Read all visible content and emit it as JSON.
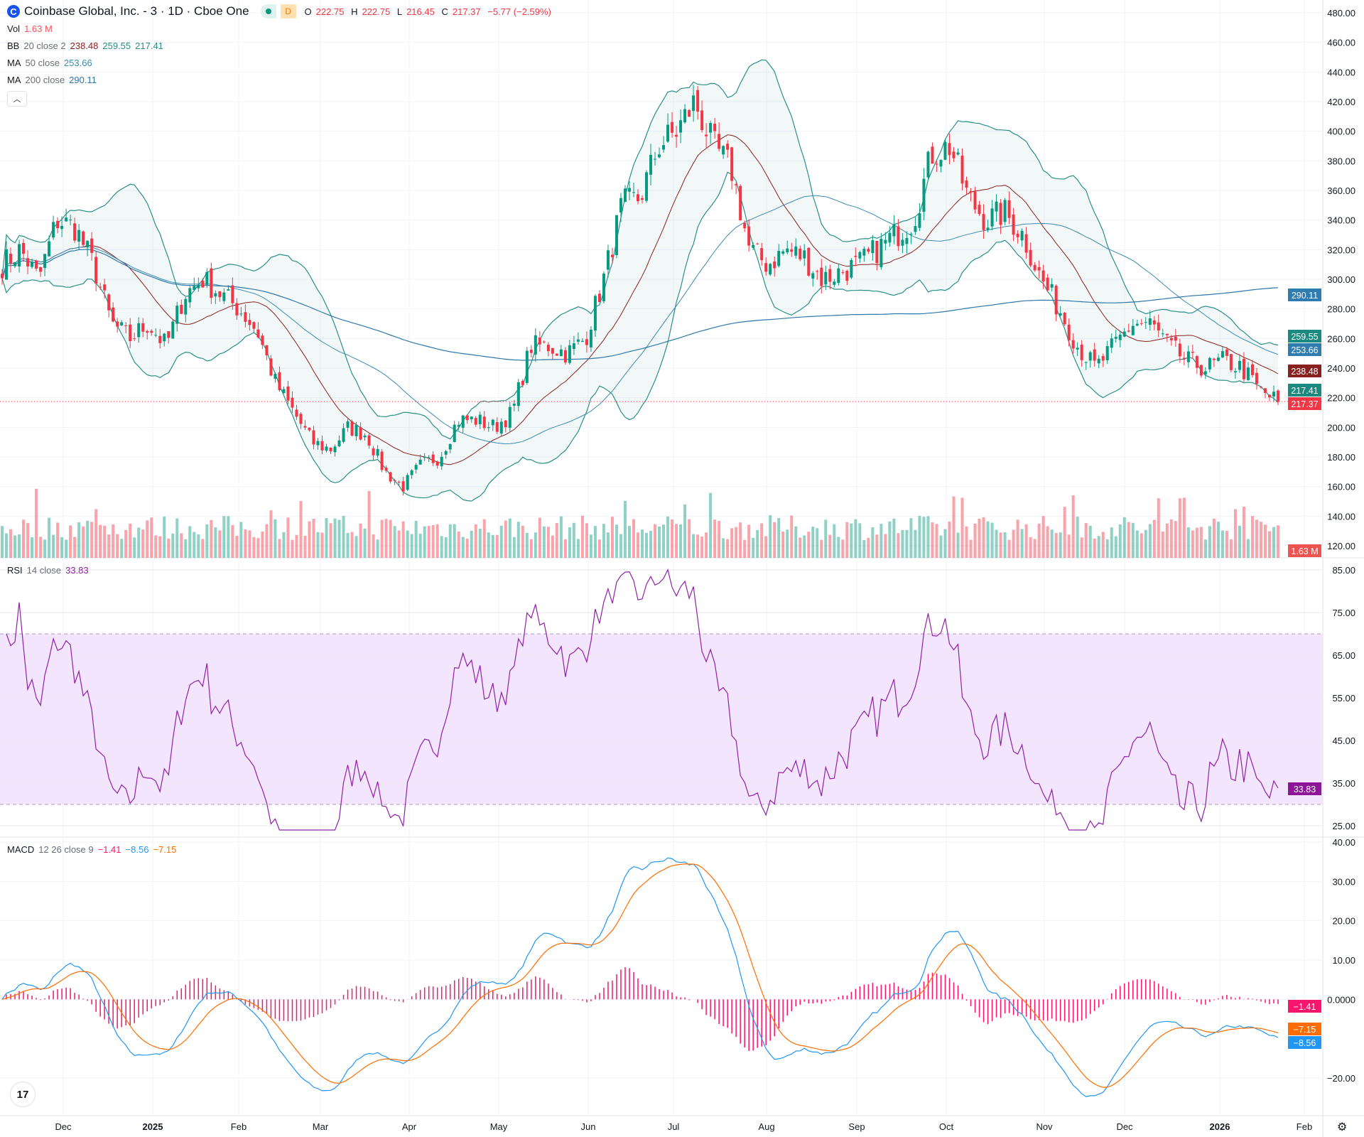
{
  "header": {
    "symbol_title": "Coinbase Global, Inc. - 3 · 1D · Cboe One",
    "logo_letter": "C",
    "delay_badge": "D",
    "open_label": "O",
    "open": "222.75",
    "high_label": "H",
    "high": "222.75",
    "low_label": "L",
    "low": "216.45",
    "close_label": "C",
    "close": "217.37",
    "change": "−5.77 (−2.59%)"
  },
  "legends": {
    "vol": {
      "label": "Vol",
      "value": "1.63 M"
    },
    "bb": {
      "label": "BB",
      "params": "20 close 2",
      "basis": "238.48",
      "upper": "259.55",
      "lower": "217.41"
    },
    "ma50": {
      "label": "MA",
      "params": "50 close",
      "value": "253.66"
    },
    "ma200": {
      "label": "MA",
      "params": "200 close",
      "value": "290.11"
    },
    "rsi": {
      "label": "RSI",
      "params": "14 close",
      "value": "33.83"
    },
    "macd": {
      "label": "MACD",
      "params": "12 26 close 9",
      "hist": "−1.41",
      "macd": "−8.56",
      "signal": "−7.15"
    }
  },
  "colors": {
    "up": "#089981",
    "down": "#f23645",
    "bb_basis": "#8a1f1f",
    "bb_band": "#2a8f86",
    "ma50": "#3b8bb0",
    "ma200": "#2f77a8",
    "rsi": "#9020a6",
    "macd": "#2196f3",
    "signal": "#ff6d00",
    "hist": "#f7156e"
  },
  "chart_data": [
    {
      "type": "candlestick",
      "title": "Coinbase Global, Inc. - 3 · 1D · Cboe One",
      "ylim": [
        120,
        480
      ],
      "y_ticks": [
        "480.00",
        "460.00",
        "440.00",
        "420.00",
        "400.00",
        "380.00",
        "360.00",
        "340.00",
        "320.00",
        "300.00",
        "280.00",
        "260.00",
        "240.00",
        "220.00",
        "200.00",
        "180.00",
        "160.00",
        "140.00",
        "120.00"
      ],
      "x_ticks": [
        "Dec",
        "2025",
        "Feb",
        "Mar",
        "Apr",
        "May",
        "Jun",
        "Jul",
        "Aug",
        "Sep",
        "Oct",
        "Nov",
        "Dec",
        "2026",
        "Feb"
      ],
      "weekly_closes_approx": [
        310,
        320,
        300,
        340,
        335,
        310,
        270,
        260,
        270,
        255,
        290,
        300,
        290,
        280,
        265,
        230,
        210,
        190,
        185,
        200,
        195,
        170,
        160,
        175,
        180,
        205,
        205,
        200,
        210,
        255,
        255,
        250,
        260,
        300,
        350,
        355,
        390,
        400,
        420,
        390,
        375,
        320,
        310,
        320,
        315,
        300,
        305,
        310,
        320,
        330,
        340,
        385,
        390,
        355,
        340,
        345,
        330,
        300,
        280,
        255,
        240,
        255,
        270,
        270,
        255,
        245,
        240,
        245,
        240,
        225,
        217.37
      ],
      "price_badges": [
        {
          "name": "ma200",
          "value": "290.11"
        },
        {
          "name": "bb-upper",
          "value": "259.55"
        },
        {
          "name": "ma50",
          "value": "253.66"
        },
        {
          "name": "bb-basis",
          "value": "238.48"
        },
        {
          "name": "bb-lower",
          "value": "217.41"
        },
        {
          "name": "last-price",
          "value": "217.37"
        },
        {
          "name": "volume",
          "value": "1.63 M"
        }
      ]
    },
    {
      "type": "line",
      "name": "RSI 14 close",
      "ylim": [
        25,
        85
      ],
      "y_ticks": [
        "85.00",
        "75.00",
        "65.00",
        "55.00",
        "45.00",
        "35.00",
        "25.00"
      ],
      "bands": [
        30,
        70
      ],
      "last": "33.83"
    },
    {
      "type": "line+bar",
      "name": "MACD 12 26 close 9",
      "ylim": [
        -27,
        40
      ],
      "y_ticks": [
        "40.00",
        "30.00",
        "20.00",
        "10.00",
        "0.0000",
        "−20.00"
      ],
      "last": {
        "hist": "−1.41",
        "signal": "−7.15",
        "macd": "−8.56"
      }
    }
  ]
}
